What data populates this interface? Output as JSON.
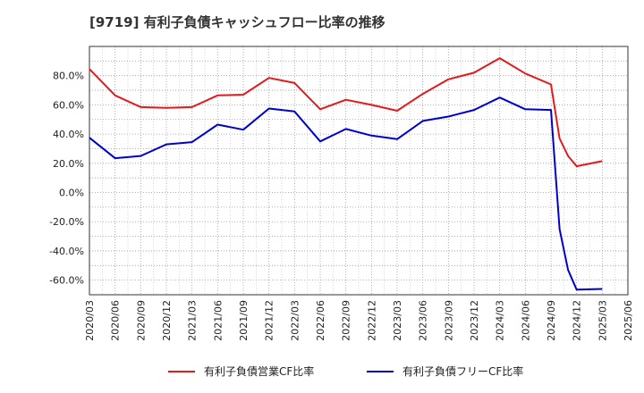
{
  "chart_data": {
    "type": "line",
    "title": "[9719]  有利子負債キャッシュフロー比率の推移",
    "xlabel": "",
    "ylabel": "",
    "ylim": [
      -70,
      100
    ],
    "y_ticks": [
      "80.0%",
      "60.0%",
      "40.0%",
      "20.0%",
      "0.0%",
      "-20.0%",
      "-40.0%",
      "-60.0%"
    ],
    "y_tick_values": [
      80,
      60,
      40,
      20,
      0,
      -20,
      -40,
      -60
    ],
    "x_ticks": [
      "2020/03",
      "2020/06",
      "2020/09",
      "2020/12",
      "2021/03",
      "2021/06",
      "2021/09",
      "2021/12",
      "2022/03",
      "2022/06",
      "2022/09",
      "2022/12",
      "2023/03",
      "2023/06",
      "2023/09",
      "2023/12",
      "2024/03",
      "2024/06",
      "2024/09",
      "2024/12",
      "2025/03",
      "2025/06"
    ],
    "grid": true,
    "legend_placement": "bottom",
    "series": [
      {
        "name": "有利子負債営業CF比率",
        "color": "#e31a1c",
        "points": [
          [
            "2020/03",
            84.5
          ],
          [
            "2020/06",
            66.5
          ],
          [
            "2020/09",
            58.5
          ],
          [
            "2020/12",
            58.0
          ],
          [
            "2021/03",
            58.5
          ],
          [
            "2021/06",
            66.5
          ],
          [
            "2021/09",
            67.0
          ],
          [
            "2021/12",
            78.5
          ],
          [
            "2022/03",
            75.0
          ],
          [
            "2022/06",
            57.0
          ],
          [
            "2022/09",
            63.5
          ],
          [
            "2022/12",
            60.0
          ],
          [
            "2023/03",
            56.0
          ],
          [
            "2023/06",
            67.5
          ],
          [
            "2023/09",
            77.5
          ],
          [
            "2023/12",
            82.0
          ],
          [
            "2024/03",
            92.0
          ],
          [
            "2024/06",
            81.5
          ],
          [
            "2024/09",
            74.0
          ],
          [
            "2024/10",
            37.0
          ],
          [
            "2024/11",
            25.0
          ],
          [
            "2024/12",
            18.0
          ],
          [
            "2025/03",
            21.5
          ]
        ]
      },
      {
        "name": "有利子負債フリーCF比率",
        "color": "#0000cc",
        "points": [
          [
            "2020/03",
            37.5
          ],
          [
            "2020/06",
            23.5
          ],
          [
            "2020/09",
            25.0
          ],
          [
            "2020/12",
            33.0
          ],
          [
            "2021/03",
            34.5
          ],
          [
            "2021/06",
            46.5
          ],
          [
            "2021/09",
            43.0
          ],
          [
            "2021/12",
            57.5
          ],
          [
            "2022/03",
            55.5
          ],
          [
            "2022/06",
            35.0
          ],
          [
            "2022/09",
            43.5
          ],
          [
            "2022/12",
            39.0
          ],
          [
            "2023/03",
            36.5
          ],
          [
            "2023/06",
            49.0
          ],
          [
            "2023/09",
            52.0
          ],
          [
            "2023/12",
            56.5
          ],
          [
            "2024/03",
            65.0
          ],
          [
            "2024/06",
            57.0
          ],
          [
            "2024/09",
            56.5
          ],
          [
            "2024/10",
            -25.0
          ],
          [
            "2024/11",
            -53.0
          ],
          [
            "2024/12",
            -66.5
          ],
          [
            "2025/03",
            -66.0
          ]
        ]
      }
    ]
  }
}
